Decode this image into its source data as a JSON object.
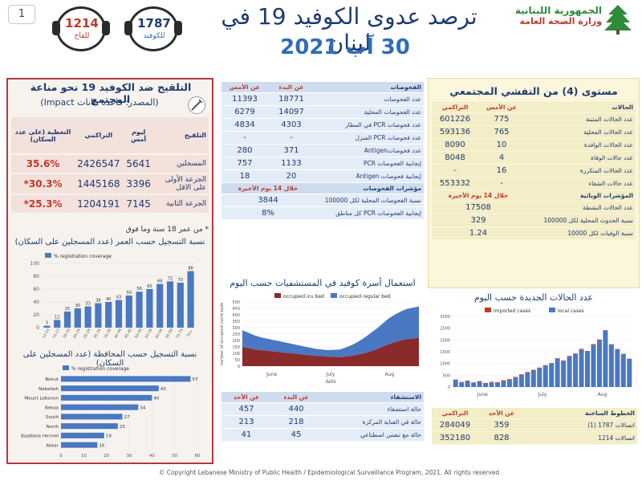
{
  "page_number": "1",
  "header": {
    "title": "ترصد عدوى الكوفيد 19 في لبنان",
    "date": "30 آب 2021",
    "ministry_line1": "الجمهورية اللبنانية",
    "ministry_line2": "وزارة الصحة العامة",
    "hotline_covid": {
      "number": "1787",
      "label": "للكوفيد"
    },
    "hotline_vaccine": {
      "number": "1214",
      "label": "للقاح"
    }
  },
  "vaccination": {
    "title": "التلقيح ضد الكوفيد 19  نحو مناعة المجتمع",
    "source": "(المصدر: قاعدة بيانات Impact)",
    "headers": [
      "التلقيح",
      "ليوم أمس",
      "التراكمي",
      "التغطية (على عدد السكان)"
    ],
    "rows": [
      {
        "label": "المسجلين",
        "yesterday": "5641",
        "cumulative": "2426547",
        "coverage": "35.6%"
      },
      {
        "label": "الجرعة الأولى على الاقل",
        "yesterday": "3396",
        "cumulative": "1445168",
        "coverage": "*30.3%"
      },
      {
        "label": "الجرعة الثانية",
        "yesterday": "7145",
        "cumulative": "1204191",
        "coverage": "*25.3%"
      }
    ],
    "note": "* من عمر 18 سنة وما فوق",
    "age_chart_title": "نسبة التسجيل حسب العمر (عدد المسجلين على السكان)",
    "gov_chart_title": "نسبة التسجيل حسب المحافظة (عدد المسجلين على السكان)"
  },
  "tests_table": {
    "headers": [
      "الفحوصات",
      "عن البدء",
      "عن الأمس"
    ],
    "rows": [
      {
        "label": "عدد الفحوصات",
        "since_start": "18771",
        "yesterday": "11393"
      },
      {
        "label": "عدد الفحوصات المحلية",
        "since_start": "14097",
        "yesterday": "6279"
      },
      {
        "label": "عدد فحوصات PCR في المطار",
        "since_start": "4303",
        "yesterday": "4834"
      },
      {
        "label": "عدد فحوصات PCR المنزل",
        "since_start": "-",
        "yesterday": "-"
      },
      {
        "label": "عدد فحوصاتAntigen",
        "since_start": "371",
        "yesterday": "280"
      },
      {
        "label": "إيجابية الفحوصات  PCR",
        "since_start": "1133",
        "yesterday": "757"
      },
      {
        "label": "إيجابية فحوصات  Antigen",
        "since_start": "20",
        "yesterday": "18"
      }
    ],
    "indicators_label": "مؤشرات الفحوصات",
    "indicators_period": "خلال 14 يوم الأخيرة",
    "indicators": [
      {
        "label": "نسبة الفحوصات  المحلية لكل 100000",
        "value": "3844"
      },
      {
        "label": "إيجابية الفحوصات PCR كل مناطق",
        "value": "8%"
      }
    ]
  },
  "community": {
    "title": "مستوى (4) من التفشي المجتمعي",
    "headers": [
      "الحالات",
      "عن الأمس",
      "التراكمي"
    ],
    "rows": [
      {
        "label": "عدد الحالات المثبتة",
        "yesterday": "775",
        "cumulative": "601226"
      },
      {
        "label": "عدد الحالات المحلية",
        "yesterday": "765",
        "cumulative": "593136"
      },
      {
        "label": "عدد الحالات الوافدة",
        "yesterday": "10",
        "cumulative": "8090"
      },
      {
        "label": "عدد حالات الوفاة",
        "yesterday": "4",
        "cumulative": "8048"
      },
      {
        "label": "عدد الحالات المتكررة",
        "yesterday": "16",
        "cumulative": "-"
      },
      {
        "label": "عدد حالات الشفاء",
        "yesterday": "-",
        "cumulative": "553332"
      }
    ],
    "indicators_label": "المؤشرات الوبائية",
    "indicators_period": "خلال 14 يوم الأخيرة",
    "indicators": [
      {
        "label": "عدد الحالات النشطة",
        "value": "17508"
      },
      {
        "label": "نسبة الحدوث المحلية لكل 100000",
        "value": "329"
      },
      {
        "label": "نسبة الوفيات لكل 10000",
        "value": "1.24"
      }
    ]
  },
  "hospital": {
    "title": "استعمال أسرة كوفيد في المستشفيات حسب اليوم",
    "headers": [
      "الاستشفاء",
      "عن البدء",
      "عن الأحد"
    ],
    "rows": [
      {
        "label": "حالة استشفاء",
        "since_start": "440",
        "yesterday": "457"
      },
      {
        "label": "حالة في العناية المركزة",
        "since_start": "218",
        "yesterday": "213"
      },
      {
        "label": "حالة مع تنفس اصطناعي",
        "since_start": "45",
        "yesterday": "41"
      }
    ]
  },
  "hotlines_table": {
    "headers": [
      "الخطوط الساخنة",
      "عن الأحد",
      "التراكمي"
    ],
    "rows": [
      {
        "label": "اتصالات 1787 (1)",
        "yesterday": "359",
        "cumulative": "284049"
      },
      {
        "label": "اتصالات 1214",
        "yesterday": "828",
        "cumulative": "352180"
      }
    ]
  },
  "copyright": "© Copyright Lebanese Ministry of Public Health / Epidemiological Surveillance Program, 2021. All rights reserved",
  "colors": {
    "primary": "#1f3b6e",
    "accent_red": "#c0392b",
    "bar_blue": "#4a78c2",
    "icu_red": "#8b2a2a"
  },
  "chart_data": [
    {
      "type": "bar",
      "categories": [
        "12-14",
        "15-17",
        "18-19",
        "20-24",
        "25-29",
        "30-34",
        "35-39",
        "40-44",
        "45-49",
        "50-54",
        "55-59",
        "60-64",
        "65-69",
        "70-74",
        "75+"
      ],
      "values": [
        3,
        12,
        25,
        30,
        33,
        38,
        40,
        43,
        50,
        56,
        60,
        68,
        72,
        70,
        88
      ],
      "xlabel": "",
      "ylabel": "",
      "ylim": [
        0,
        100
      ],
      "legend": [
        "% registration coverage"
      ]
    },
    {
      "type": "bar",
      "orientation": "horizontal",
      "categories": [
        "Beirut",
        "Nabatieh",
        "Mount Lebanon",
        "Bekaa",
        "South",
        "North",
        "Baalbeck Hermel",
        "Akkar"
      ],
      "values": [
        57,
        43,
        40,
        34,
        27,
        25,
        19,
        16
      ],
      "xlim": [
        0,
        60
      ],
      "legend": [
        "% registration coverage"
      ]
    },
    {
      "type": "area",
      "x_labels": [
        "June",
        "July",
        "Aug"
      ],
      "xlabel": "date",
      "ylabel": "number of occupied covid beds",
      "ylim": [
        0,
        500
      ],
      "series": [
        {
          "name": "occupied icu bed",
          "values": [
            150,
            140,
            130,
            125,
            120,
            115,
            110,
            105,
            100,
            95,
            90,
            85,
            80,
            78,
            75,
            72,
            70,
            75,
            80,
            90,
            100,
            115,
            130,
            150,
            170,
            185,
            200,
            210,
            215,
            220
          ]
        },
        {
          "name": "occupied regular bed",
          "values": [
            130,
            120,
            110,
            100,
            95,
            90,
            85,
            80,
            75,
            70,
            65,
            60,
            55,
            52,
            50,
            55,
            60,
            70,
            85,
            100,
            120,
            140,
            160,
            180,
            200,
            215,
            225,
            235,
            240,
            245
          ]
        }
      ]
    },
    {
      "type": "bar",
      "title": "عدد الحالات الجديدة حسب اليوم",
      "x_labels": [
        "June",
        "July",
        "Aug"
      ],
      "ylim": [
        0,
        3000
      ],
      "series": [
        {
          "name": "imported cases",
          "values": [
            20,
            15,
            25,
            20,
            30,
            25,
            20,
            30,
            40,
            35,
            30,
            40,
            35,
            30,
            25,
            30,
            20,
            25,
            30,
            20,
            25,
            20,
            30,
            25,
            20,
            15,
            20,
            15,
            10,
            10
          ]
        },
        {
          "name": "local cases",
          "values": [
            300,
            200,
            250,
            180,
            220,
            150,
            200,
            180,
            250,
            300,
            400,
            500,
            600,
            700,
            800,
            900,
            1000,
            1200,
            1100,
            1300,
            1400,
            1600,
            1500,
            1800,
            2000,
            2400,
            1800,
            1600,
            1400,
            1200
          ]
        }
      ]
    }
  ]
}
